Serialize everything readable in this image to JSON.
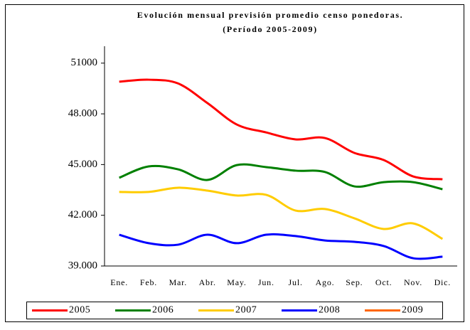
{
  "chart_data": {
    "type": "line",
    "title": "Evolución mensual previsión promedio censo ponedoras.",
    "subtitle": "(Período 2005-2009)",
    "categories": [
      "Ene.",
      "Feb.",
      "Mar.",
      "Abr.",
      "May.",
      "Jun.",
      "Jul.",
      "Ago.",
      "Sep.",
      "Oct.",
      "Nov.",
      "Dic."
    ],
    "series": [
      {
        "name": "2005",
        "color": "#ff0000",
        "values": [
          49900,
          50020,
          49800,
          48640,
          47370,
          46900,
          46490,
          46570,
          45690,
          45270,
          44300,
          44130
        ]
      },
      {
        "name": "2006",
        "color": "#008000",
        "values": [
          44220,
          44890,
          44720,
          44090,
          44970,
          44850,
          44640,
          44560,
          43710,
          43960,
          43960,
          43540
        ]
      },
      {
        "name": "2007",
        "color": "#ffcc00",
        "values": [
          43380,
          43380,
          43630,
          43460,
          43170,
          43210,
          42280,
          42370,
          41820,
          41190,
          41520,
          40600
        ]
      },
      {
        "name": "2008",
        "color": "#0000ff",
        "values": [
          40850,
          40350,
          40260,
          40850,
          40350,
          40850,
          40770,
          40510,
          40430,
          40180,
          39460,
          39550
        ]
      },
      {
        "name": "2009",
        "color": "#ff6600",
        "values": [
          null,
          null,
          null,
          null,
          null,
          null,
          null,
          null,
          null,
          null,
          null,
          null
        ]
      }
    ],
    "ylim": [
      39000,
      52000
    ],
    "yticks": [
      {
        "value": 39000,
        "label": "39.000"
      },
      {
        "value": 42000,
        "label": "42.000"
      },
      {
        "value": 45000,
        "label": "45.000"
      },
      {
        "value": 48000,
        "label": "48.000"
      },
      51000
    ],
    "legend": "bottom"
  }
}
